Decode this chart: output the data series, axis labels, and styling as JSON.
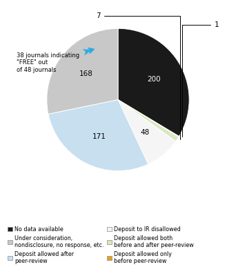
{
  "values": [
    200,
    1,
    7,
    48,
    171,
    168
  ],
  "slice_labels": [
    "200",
    "1",
    "7",
    "48",
    "171",
    "168"
  ],
  "colors": [
    "#1a1a1a",
    "#e8a020",
    "#d9e8c0",
    "#f5f5f5",
    "#c8dff0",
    "#c8c8c8"
  ],
  "legend_items": [
    {
      "label": "No data available",
      "color": "#1a1a1a"
    },
    {
      "label": "Under consideration,\nnondisclosure, no response, etc.",
      "color": "#c8c8c8"
    },
    {
      "label": "Deposit allowed after\npeer-review",
      "color": "#c8dff0"
    },
    {
      "label": "Deposit to IR disallowed",
      "color": "#f5f5f5"
    },
    {
      "label": "Deposit allowed both\nbefore and after peer-review",
      "color": "#d9e8c0"
    },
    {
      "label": "Deposit allowed only\nbefore peer-review",
      "color": "#e8a020"
    }
  ],
  "annotation_text": "38 journals indicating\n\"FREE\" out\nof 48 journals",
  "startangle": 90,
  "counterclock": false
}
